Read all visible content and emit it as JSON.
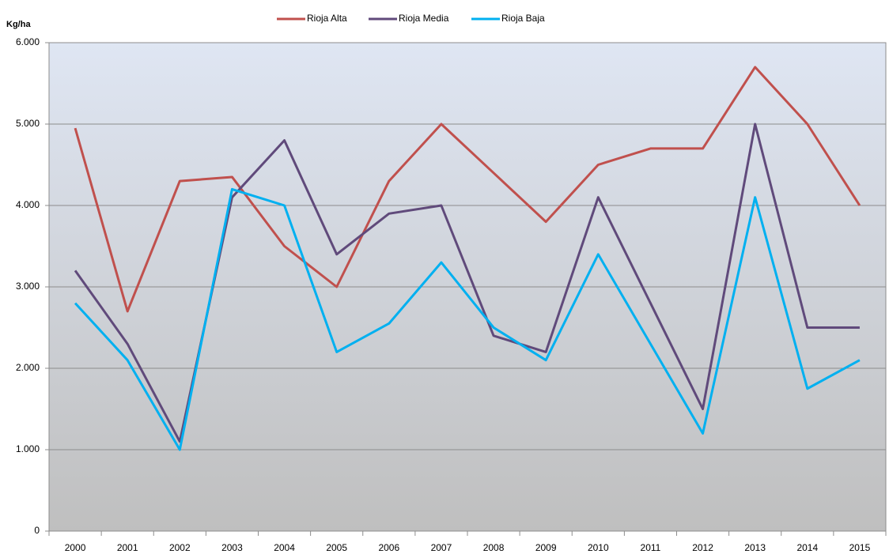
{
  "chart_data": {
    "type": "line",
    "y_label": "Kg/ha",
    "categories": [
      "2000",
      "2001",
      "2002",
      "2003",
      "2004",
      "2005",
      "2006",
      "2007",
      "2008",
      "2009",
      "2010",
      "2011",
      "2012",
      "2013",
      "2014",
      "2015"
    ],
    "series": [
      {
        "name": "Rioja Alta",
        "color": "#c0504d",
        "values": [
          4950,
          2700,
          4300,
          4350,
          3500,
          3000,
          4300,
          5000,
          4400,
          3800,
          4500,
          4700,
          4700,
          5700,
          5000,
          4000
        ]
      },
      {
        "name": "Rioja Media",
        "color": "#604a7b",
        "values": [
          3200,
          2300,
          1100,
          4100,
          4800,
          3400,
          3900,
          4000,
          2400,
          2200,
          4100,
          2800,
          1500,
          5000,
          2500,
          2500
        ]
      },
      {
        "name": "Rioja Baja",
        "color": "#00b0f0",
        "values": [
          2800,
          2100,
          1000,
          4200,
          4000,
          2200,
          2550,
          3300,
          2500,
          2100,
          3400,
          2300,
          1200,
          4100,
          1750,
          2100
        ]
      }
    ],
    "ylim": [
      0,
      6000
    ],
    "yticks": [
      0,
      {
        "value": 1000,
        "label": "1.000"
      },
      {
        "value": 2000,
        "label": "2.000"
      },
      {
        "value": 3000,
        "label": "3.000"
      },
      {
        "value": 4000,
        "label": "4.000"
      },
      {
        "value": 5000,
        "label": "5.000"
      },
      {
        "value": 6000,
        "label": "6.000"
      }
    ],
    "grid": true
  }
}
